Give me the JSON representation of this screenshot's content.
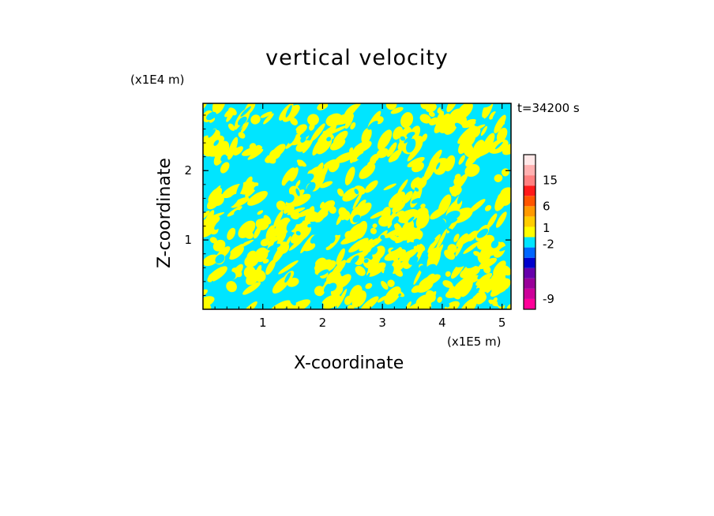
{
  "chart_data": {
    "type": "heatmap",
    "title": "vertical velocity",
    "xlabel": "X-coordinate",
    "ylabel": "Z-coordinate",
    "x_unit": "(x1E5 m)",
    "z_unit": "(x1E4 m)",
    "time_label": "t=34200 s",
    "xlim": [
      0,
      5.15
    ],
    "ylim": [
      0,
      2.97
    ],
    "x_ticks": [
      "1",
      "2",
      "3",
      "4",
      "5"
    ],
    "y_ticks": [
      "1",
      "2"
    ],
    "field_colors": {
      "updraft": "#ffff00",
      "downdraft": "#00e5ff"
    },
    "colorbar": {
      "levels": [
        {
          "color": "#ff0099"
        },
        {
          "color": "#cc0099"
        },
        {
          "color": "#990099"
        },
        {
          "color": "#6600aa"
        },
        {
          "color": "#0000cc"
        },
        {
          "color": "#0066ff"
        },
        {
          "color": "#00e5ff"
        },
        {
          "color": "#ffff00"
        },
        {
          "color": "#ffcc00"
        },
        {
          "color": "#ff9900"
        },
        {
          "color": "#ff5500"
        },
        {
          "color": "#ff1a1a"
        },
        {
          "color": "#ff8080"
        },
        {
          "color": "#ffb0b0"
        },
        {
          "color": "#ffe8e8"
        }
      ],
      "labels": [
        {
          "text": "15",
          "level": 12.5
        },
        {
          "text": "6",
          "level": 10
        },
        {
          "text": "1",
          "level": 7.9
        },
        {
          "text": "-2",
          "level": 6.3
        },
        {
          "text": "-9",
          "level": 1
        }
      ]
    }
  }
}
